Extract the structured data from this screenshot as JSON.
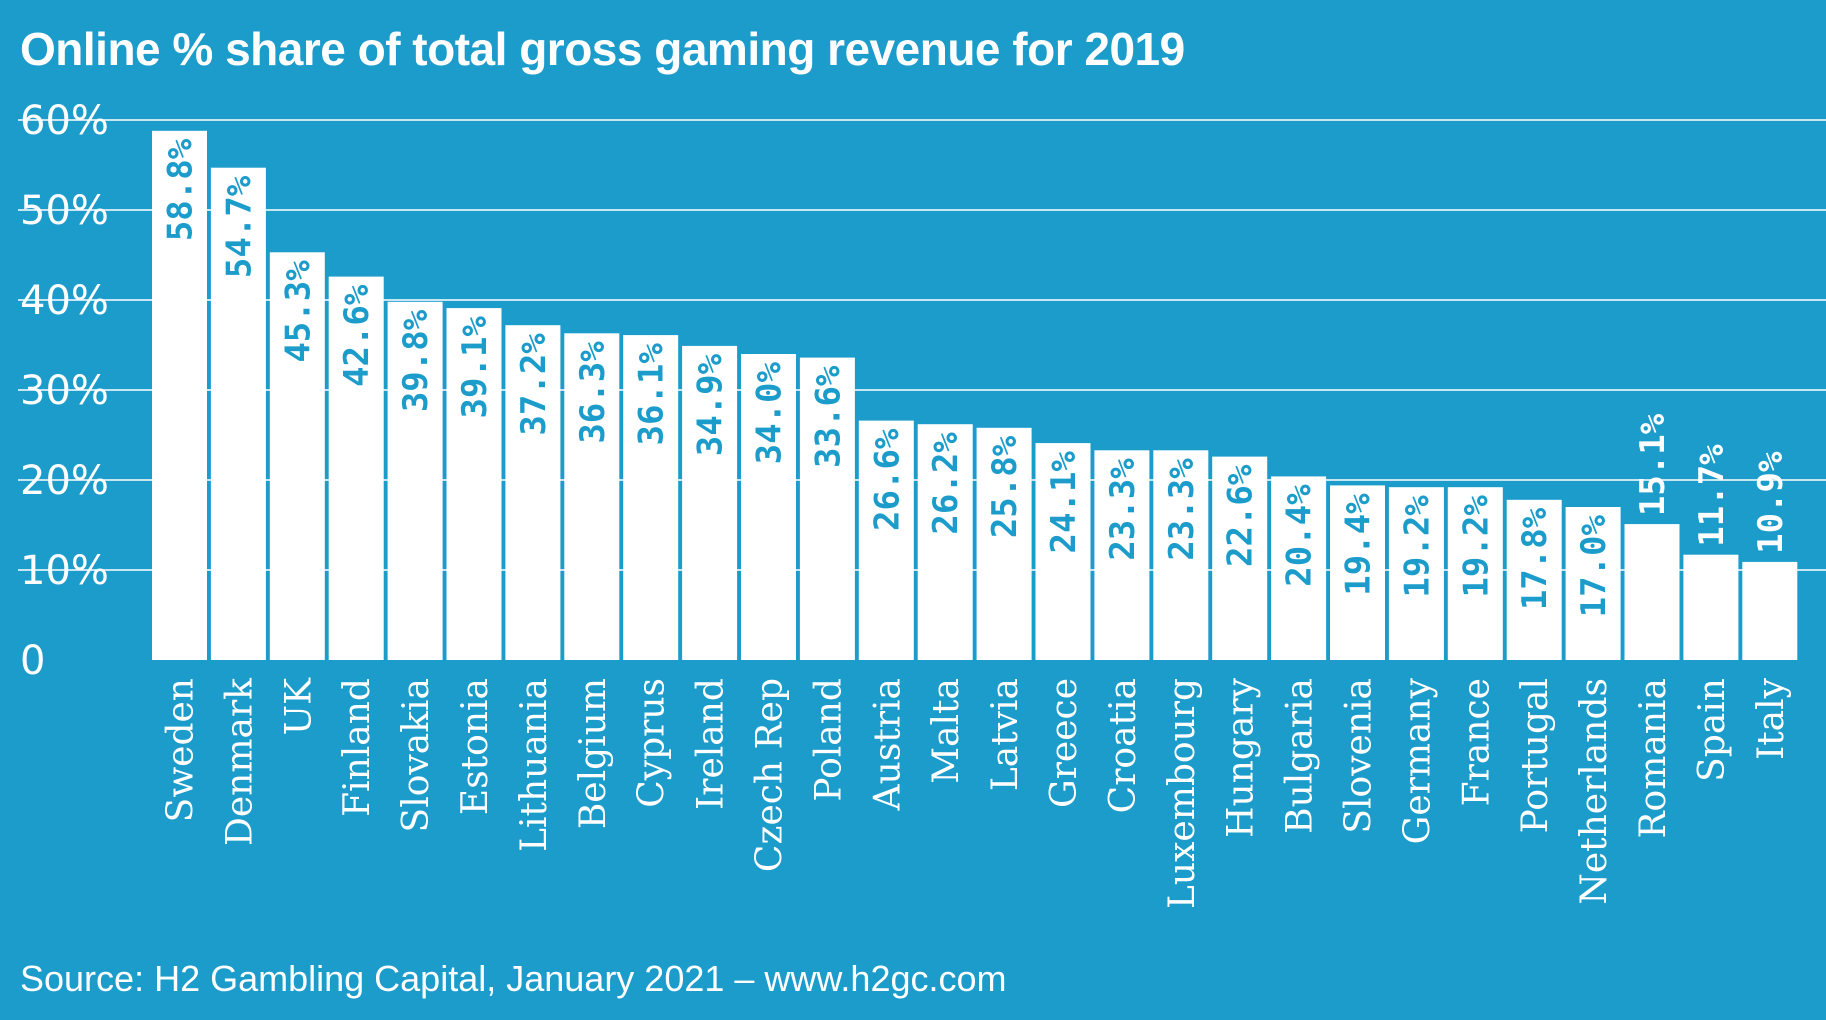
{
  "chart_data": {
    "type": "bar",
    "title": "Online % share of total gross gaming revenue for 2019",
    "source": "Source: H2 Gambling Capital, January 2021 – www.h2gc.com",
    "xlabel": "",
    "ylabel": "",
    "ylim": [
      0,
      60
    ],
    "grid": true,
    "y_ticks": [
      {
        "value": 0,
        "label": "0"
      },
      {
        "value": 10,
        "label": "10%"
      },
      {
        "value": 20,
        "label": "20%"
      },
      {
        "value": 30,
        "label": "30%"
      },
      {
        "value": 40,
        "label": "40%"
      },
      {
        "value": 50,
        "label": "50%"
      },
      {
        "value": 60,
        "label": "60%"
      }
    ],
    "categories": [
      "Sweden",
      "Denmark",
      "UK",
      "Finland",
      "Slovakia",
      "Estonia",
      "Lithuania",
      "Belgium",
      "Cyprus",
      "Ireland",
      "Czech Rep",
      "Poland",
      "Austria",
      "Malta",
      "Latvia",
      "Greece",
      "Croatia",
      "Luxembourg",
      "Hungary",
      "Bulgaria",
      "Slovenia",
      "Germany",
      "France",
      "Portugal",
      "Netherlands",
      "Romania",
      "Spain",
      "Italy"
    ],
    "values": [
      58.8,
      54.7,
      45.3,
      42.6,
      39.8,
      39.1,
      37.2,
      36.3,
      36.1,
      34.9,
      34.0,
      33.6,
      26.6,
      26.2,
      25.8,
      24.1,
      23.3,
      23.3,
      22.6,
      20.4,
      19.4,
      19.2,
      19.2,
      17.8,
      17.0,
      15.1,
      11.7,
      10.9
    ],
    "data_labels": [
      "58.8%",
      "54.7%",
      "45.3%",
      "42.6%",
      "39.8%",
      "39.1%",
      "37.2%",
      "36.3%",
      "36.1%",
      "34.9%",
      "34.0%",
      "33.6%",
      "26.6%",
      "26.2%",
      "25.8%",
      "24.1%",
      "23.3%",
      "23.3%",
      "22.6%",
      "20.4%",
      "19.4%",
      "19.2%",
      "19.2%",
      "17.8%",
      "17.0%",
      "15.1%",
      "11.7%",
      "10.9%"
    ],
    "colors": {
      "background": "#1b9ccb",
      "bar": "#ffffff",
      "label_inside": "#1b9ccb",
      "label_outside": "#ffffff"
    }
  }
}
